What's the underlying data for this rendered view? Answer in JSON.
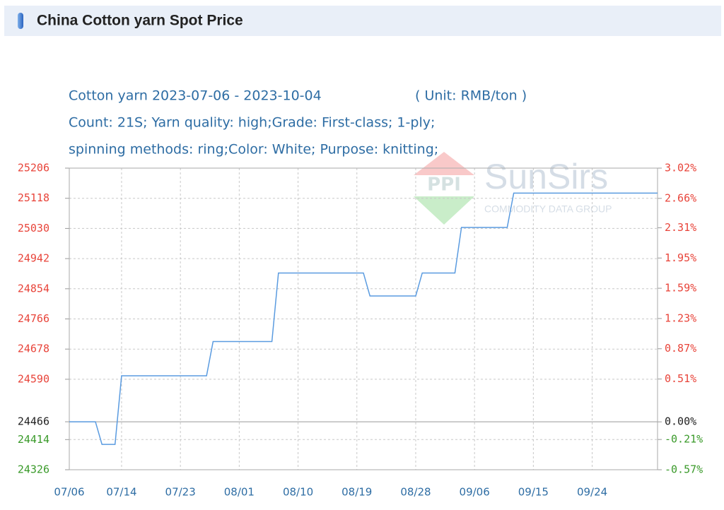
{
  "header": {
    "title": "China Cotton yarn Spot Price"
  },
  "chart_data": {
    "type": "line",
    "title": "Cotton yarn 2023-07-06 - 2023-10-04",
    "unit": "( Unit: RMB/ton )",
    "subtitle": [
      "Count: 21S; Yarn quality: high;Grade: First-class; 1-ply;",
      "spinning methods: ring;Color: White; Purpose: knitting;"
    ],
    "watermark": {
      "logo": "PPI",
      "text": "SunSirs",
      "tagline": "COMMODITY DATA GROUP"
    },
    "x": [
      "07/06",
      "07/10",
      "07/11",
      "07/13",
      "07/14",
      "07/27",
      "07/28",
      "08/06",
      "08/07",
      "08/20",
      "08/21",
      "08/28",
      "08/29",
      "09/03",
      "09/04",
      "09/11",
      "09/12",
      "10/04"
    ],
    "series": [
      {
        "name": "Cotton yarn",
        "color": "#5a9be0",
        "values": [
          24466,
          24466,
          24400,
          24400,
          24600,
          24600,
          24700,
          24700,
          24900,
          24900,
          24833,
          24833,
          24900,
          24900,
          25033,
          25033,
          25133,
          25133
        ]
      }
    ],
    "ylim": [
      24326,
      25206
    ],
    "yticks": [
      25206,
      25118,
      25030,
      24942,
      24854,
      24766,
      24678,
      24590,
      24466,
      24414,
      24326
    ],
    "y2lim": [
      -0.57,
      3.02
    ],
    "y2ticks": [
      {
        "value": 3.02,
        "label": "3.02%"
      },
      {
        "value": 2.66,
        "label": "2.66%"
      },
      {
        "value": 2.31,
        "label": "2.31%"
      },
      {
        "value": 1.95,
        "label": "1.95%"
      },
      {
        "value": 1.59,
        "label": "1.59%"
      },
      {
        "value": 1.23,
        "label": "1.23%"
      },
      {
        "value": 0.87,
        "label": "0.87%"
      },
      {
        "value": 0.51,
        "label": "0.51%"
      },
      {
        "value": 0,
        "label": "0.00%"
      },
      {
        "value": -0.21,
        "label": "-0.21%"
      },
      {
        "value": -0.57,
        "label": "-0.57%"
      }
    ],
    "xticks": [
      "07/06",
      "07/14",
      "07/23",
      "08/01",
      "08/10",
      "08/19",
      "08/28",
      "09/06",
      "09/15",
      "09/24"
    ],
    "up_color": "#e8443a",
    "flat_color": "#222222",
    "down_color": "#3a9a2a",
    "grid": true
  }
}
